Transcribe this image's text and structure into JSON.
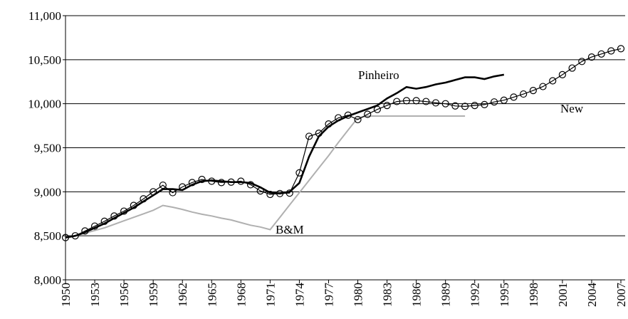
{
  "chart_data": {
    "type": "line",
    "x": [
      1950,
      1951,
      1952,
      1953,
      1954,
      1955,
      1956,
      1957,
      1958,
      1959,
      1960,
      1961,
      1962,
      1963,
      1964,
      1965,
      1966,
      1967,
      1968,
      1969,
      1970,
      1971,
      1972,
      1973,
      1974,
      1975,
      1976,
      1977,
      1978,
      1979,
      1980,
      1981,
      1982,
      1983,
      1984,
      1985,
      1986,
      1987,
      1988,
      1989,
      1990,
      1991,
      1992,
      1993,
      1994,
      1995,
      1996,
      1997,
      1998,
      1999,
      2000,
      2001,
      2002,
      2003,
      2004,
      2005,
      2006,
      2007
    ],
    "series": [
      {
        "name": "New",
        "color": "#000000",
        "marker": "circle",
        "values": [
          8480,
          8500,
          8555,
          8610,
          8665,
          8725,
          8780,
          8845,
          8920,
          9000,
          9075,
          8990,
          9055,
          9105,
          9140,
          9120,
          9105,
          9110,
          9120,
          9080,
          9010,
          8970,
          8980,
          8985,
          9215,
          9630,
          9665,
          9770,
          9840,
          9870,
          9820,
          9880,
          9935,
          9980,
          10025,
          10035,
          10035,
          10025,
          10010,
          10000,
          9975,
          9970,
          9980,
          9990,
          10020,
          10040,
          10075,
          10110,
          10150,
          10195,
          10260,
          10330,
          10405,
          10480,
          10530,
          10565,
          10600,
          10625
        ]
      },
      {
        "name": "Pinheiro",
        "color": "#000000",
        "values": [
          8480,
          8500,
          8540,
          8590,
          8640,
          8700,
          8760,
          8820,
          8890,
          8960,
          9030,
          9030,
          9020,
          9080,
          9120,
          9130,
          9120,
          9110,
          9110,
          9100,
          9050,
          8990,
          8980,
          9000,
          9100,
          9400,
          9630,
          9740,
          9810,
          9860,
          9900,
          9940,
          9980,
          10060,
          10120,
          10190,
          10170,
          10190,
          10220,
          10240,
          10270,
          10300,
          10300,
          10280,
          10310,
          10330,
          null,
          null,
          null,
          null,
          null,
          null,
          null,
          null,
          null,
          null,
          null,
          null
        ]
      },
      {
        "name": "B&M",
        "color": "#b0b0b0",
        "values": [
          8480,
          8500,
          8530,
          8560,
          8590,
          8630,
          8670,
          8710,
          8750,
          8790,
          8845,
          8825,
          8800,
          8770,
          8745,
          8725,
          8700,
          8680,
          8650,
          8620,
          8600,
          8570,
          8710,
          8850,
          8990,
          9130,
          9270,
          9410,
          9560,
          9700,
          9840,
          9860,
          9860,
          9860,
          9860,
          9860,
          9860,
          9860,
          9860,
          9860,
          9860,
          9860,
          null,
          null,
          null,
          null,
          null,
          null,
          null,
          null,
          null,
          null,
          null,
          null,
          null,
          null,
          null,
          null
        ]
      }
    ],
    "xlim": [
      1950,
      2007
    ],
    "xticks": [
      1950,
      1953,
      1956,
      1959,
      1962,
      1965,
      1968,
      1971,
      1974,
      1977,
      1980,
      1983,
      1986,
      1989,
      1992,
      1995,
      1998,
      2001,
      2004,
      2007
    ],
    "ylim": [
      8000,
      11000
    ],
    "yticks": [
      {
        "value": 8000,
        "label": "8,000"
      },
      {
        "value": 8500,
        "label": "8,500"
      },
      {
        "value": 9000,
        "label": "9,000"
      },
      {
        "value": 9500,
        "label": "9,500"
      },
      {
        "value": 10000,
        "label": "10,000"
      },
      {
        "value": 10500,
        "label": "10,500"
      },
      {
        "value": 11000,
        "label": "11,000"
      }
    ],
    "grid": true
  }
}
